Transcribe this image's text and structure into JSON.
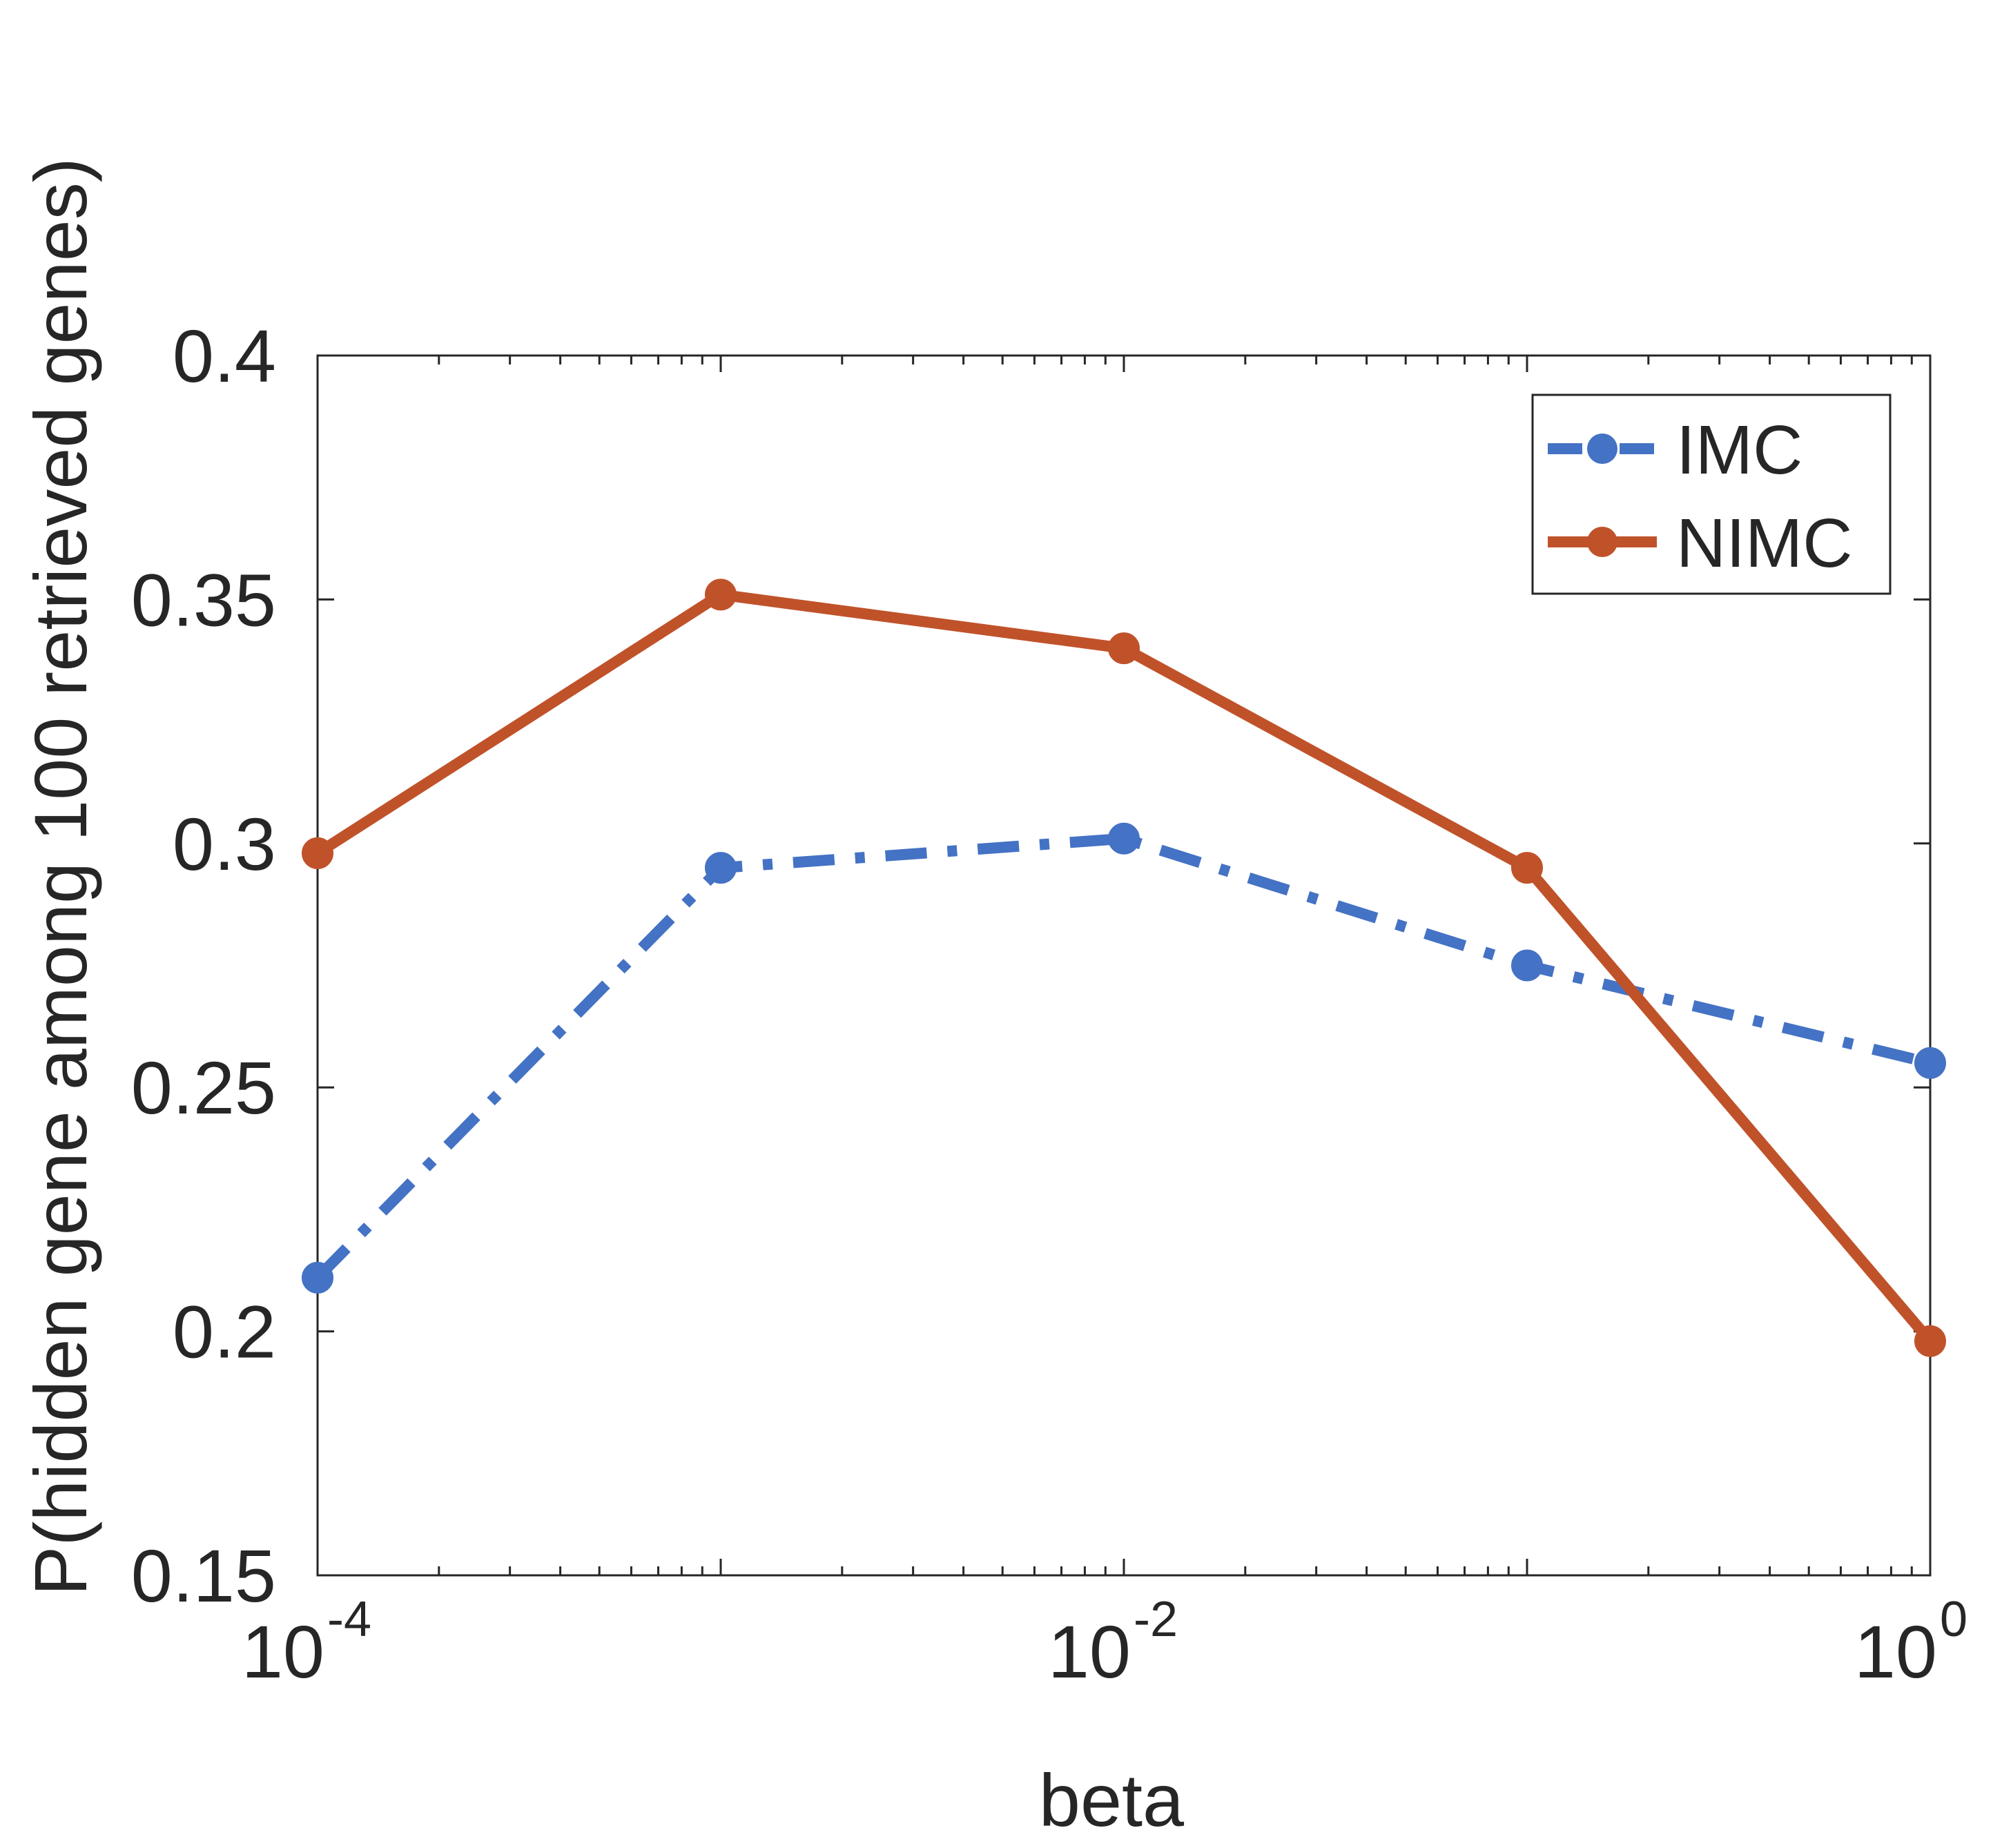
{
  "chart_data": {
    "type": "line",
    "title": "",
    "xlabel": "beta",
    "ylabel": "P(hidden gene among 100 retrieved genes)",
    "xscale": "log",
    "xlim": [
      0.0001,
      1
    ],
    "ylim": [
      0.15,
      0.4
    ],
    "grid": false,
    "legend_position": "top-right",
    "x": [
      0.0001,
      0.001,
      0.01,
      0.1,
      1
    ],
    "xticks": [
      {
        "value": 0.0001,
        "base": "10",
        "exp": "-4"
      },
      {
        "value": 0.01,
        "base": "10",
        "exp": "-2"
      },
      {
        "value": 1,
        "base": "10",
        "exp": "0"
      }
    ],
    "yticks": [
      {
        "value": 0.15,
        "label": "0.15"
      },
      {
        "value": 0.2,
        "label": "0.2"
      },
      {
        "value": 0.25,
        "label": "0.25"
      },
      {
        "value": 0.3,
        "label": "0.3"
      },
      {
        "value": 0.35,
        "label": "0.35"
      },
      {
        "value": 0.4,
        "label": "0.4"
      }
    ],
    "series": [
      {
        "name": "IMC",
        "color": "#4472C4",
        "line_style": "dash-dot",
        "values": [
          0.211,
          0.295,
          0.301,
          0.275,
          0.255
        ]
      },
      {
        "name": "NIMC",
        "color": "#C0522A",
        "line_style": "solid",
        "values": [
          0.298,
          0.351,
          0.34,
          0.295,
          0.198
        ]
      }
    ]
  }
}
